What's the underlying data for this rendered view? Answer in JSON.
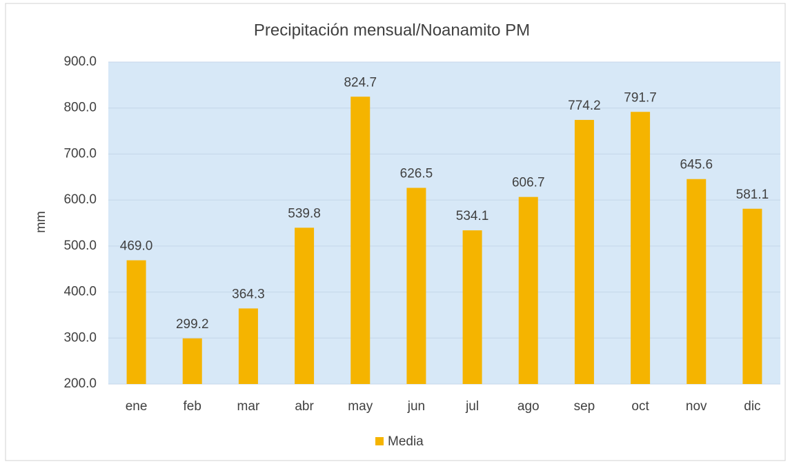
{
  "chart_data": {
    "type": "bar",
    "title": "Precipitación mensual/Noanamito PM",
    "y_label": "mm",
    "categories": [
      "ene",
      "feb",
      "mar",
      "abr",
      "may",
      "jun",
      "jul",
      "ago",
      "sep",
      "oct",
      "nov",
      "dic"
    ],
    "series": [
      {
        "name": "Media",
        "color": "#f5b400",
        "values": [
          469.0,
          299.2,
          364.3,
          539.8,
          824.7,
          626.5,
          534.1,
          606.7,
          774.2,
          791.7,
          645.6,
          581.1
        ],
        "value_labels": [
          "469.0",
          "299.2",
          "364.3",
          "539.8",
          "824.7",
          "626.5",
          "534.1",
          "606.7",
          "774.2",
          "791.7",
          "645.6",
          "581.1"
        ]
      }
    ],
    "ylim": [
      200,
      900
    ],
    "yticks": [
      {
        "value": 200,
        "label": "200.0"
      },
      {
        "value": 300,
        "label": "300.0"
      },
      {
        "value": 400,
        "label": "400.0"
      },
      {
        "value": 500,
        "label": "500.0"
      },
      {
        "value": 600,
        "label": "600.0"
      },
      {
        "value": 700,
        "label": "700.0"
      },
      {
        "value": 800,
        "label": "800.0"
      },
      {
        "value": 900,
        "label": "900.0"
      }
    ],
    "grid": true,
    "legend": "bottom"
  }
}
